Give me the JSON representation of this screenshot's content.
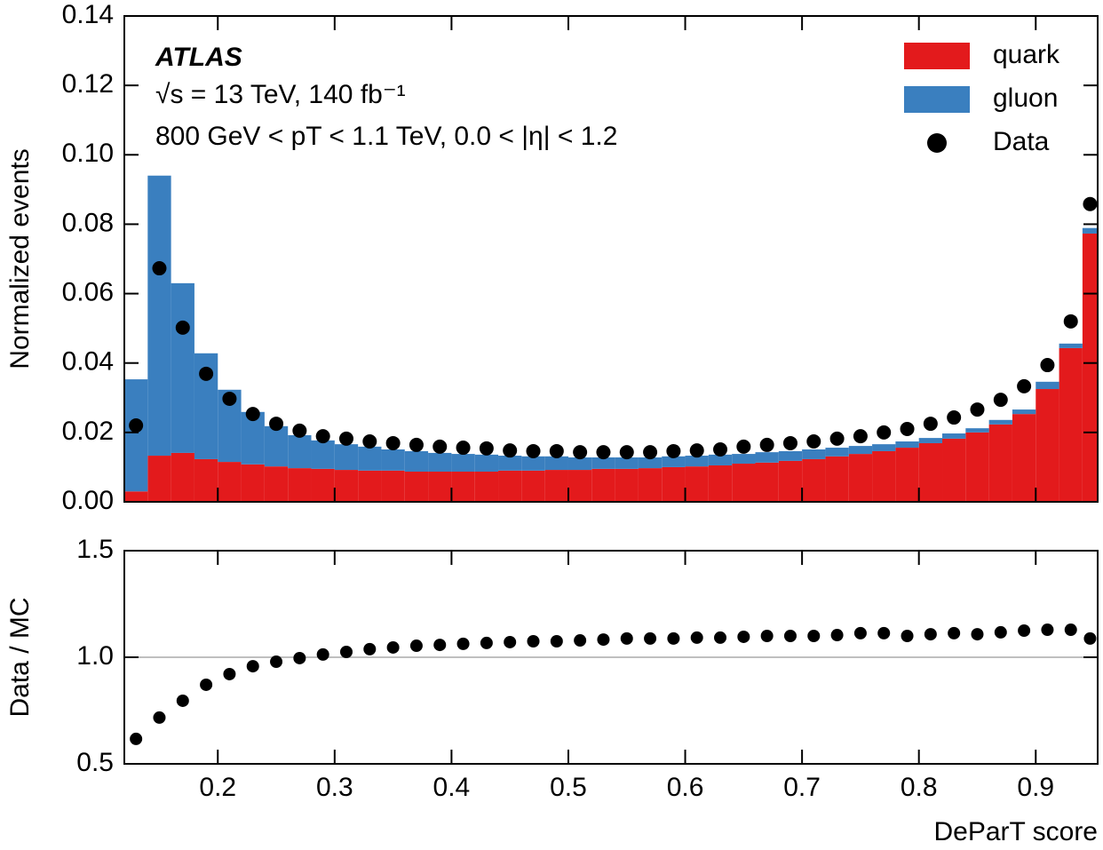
{
  "chart_data": [
    {
      "type": "histogram",
      "annotations": [
        "ATLAS",
        "√s = 13 TeV, 140 fb⁻¹",
        "800 GeV < pT < 1.1 TeV, 0.0 < |η| < 1.2"
      ],
      "ylabel": "Normalized events",
      "bins": [
        0.12,
        0.14,
        0.16,
        0.18,
        0.2,
        0.22,
        0.24,
        0.26,
        0.28,
        0.3,
        0.32,
        0.34,
        0.36,
        0.38,
        0.4,
        0.42,
        0.44,
        0.46,
        0.48,
        0.5,
        0.52,
        0.54,
        0.56,
        0.58,
        0.6,
        0.62,
        0.64,
        0.66,
        0.68,
        0.7,
        0.72,
        0.74,
        0.76,
        0.78,
        0.8,
        0.82,
        0.84,
        0.86,
        0.88,
        0.9,
        0.92,
        0.94,
        0.953
      ],
      "series": [
        {
          "name": "quark",
          "color": "#e31a1c",
          "stacked": true,
          "values": [
            0.003,
            0.0133,
            0.0141,
            0.0123,
            0.0115,
            0.0108,
            0.0102,
            0.0097,
            0.0095,
            0.0092,
            0.009,
            0.009,
            0.0087,
            0.0087,
            0.0087,
            0.0087,
            0.009,
            0.009,
            0.0092,
            0.0092,
            0.0095,
            0.0095,
            0.0097,
            0.01,
            0.0102,
            0.0105,
            0.011,
            0.0113,
            0.0118,
            0.0123,
            0.0131,
            0.0138,
            0.0146,
            0.0156,
            0.0169,
            0.0182,
            0.02,
            0.0223,
            0.0253,
            0.0325,
            0.0443,
            0.0773
          ]
        },
        {
          "name": "gluon",
          "color": "#3a7fbf",
          "stacked": true,
          "values": [
            0.0323,
            0.0807,
            0.0489,
            0.0305,
            0.0208,
            0.0151,
            0.0116,
            0.0095,
            0.0082,
            0.0074,
            0.0069,
            0.0061,
            0.0059,
            0.0054,
            0.0051,
            0.0049,
            0.0043,
            0.0041,
            0.0039,
            0.0036,
            0.0033,
            0.0033,
            0.0031,
            0.0031,
            0.0031,
            0.0031,
            0.0028,
            0.003,
            0.0028,
            0.0028,
            0.0025,
            0.0023,
            0.002,
            0.0018,
            0.0015,
            0.0015,
            0.0012,
            0.0013,
            0.0013,
            0.0021,
            0.0013,
            0.0016
          ]
        },
        {
          "name": "Data",
          "color": "#000000",
          "marker": "circle",
          "values": [
            0.022,
            0.0673,
            0.0502,
            0.0369,
            0.0297,
            0.0253,
            0.0225,
            0.0205,
            0.0189,
            0.0182,
            0.0174,
            0.0169,
            0.0164,
            0.0159,
            0.0156,
            0.0154,
            0.0148,
            0.0146,
            0.0146,
            0.0143,
            0.0143,
            0.0143,
            0.0143,
            0.0146,
            0.0148,
            0.0151,
            0.0159,
            0.0164,
            0.0169,
            0.0174,
            0.0182,
            0.0189,
            0.02,
            0.021,
            0.0225,
            0.0243,
            0.0266,
            0.0294,
            0.0333,
            0.0394,
            0.052,
            0.0858
          ]
        }
      ],
      "xlim": [
        0.12,
        0.953
      ],
      "xticks": [
        0.2,
        0.3,
        0.4,
        0.5,
        0.6,
        0.7,
        0.8,
        0.9
      ],
      "ylim": [
        0,
        0.14
      ],
      "yticks": [
        {
          "value": 0,
          "label": "0.00"
        },
        0.02,
        0.04,
        0.06,
        0.08,
        {
          "value": 0.1,
          "label": "0.10"
        },
        0.12,
        0.14
      ],
      "legend": "upper right"
    },
    {
      "type": "scatter",
      "xlabel": "DeParT score",
      "ylabel": "Data / MC",
      "x": [
        0.13,
        0.15,
        0.17,
        0.19,
        0.21,
        0.23,
        0.25,
        0.27,
        0.29,
        0.31,
        0.33,
        0.35,
        0.37,
        0.39,
        0.41,
        0.43,
        0.45,
        0.47,
        0.49,
        0.51,
        0.53,
        0.55,
        0.57,
        0.59,
        0.61,
        0.63,
        0.65,
        0.67,
        0.69,
        0.71,
        0.73,
        0.75,
        0.77,
        0.79,
        0.81,
        0.83,
        0.85,
        0.87,
        0.89,
        0.91,
        0.93,
        0.9465
      ],
      "values": [
        0.617,
        0.717,
        0.796,
        0.871,
        0.921,
        0.958,
        0.979,
        0.996,
        1.013,
        1.025,
        1.038,
        1.046,
        1.054,
        1.058,
        1.063,
        1.067,
        1.071,
        1.075,
        1.075,
        1.079,
        1.083,
        1.088,
        1.088,
        1.088,
        1.092,
        1.092,
        1.096,
        1.1,
        1.1,
        1.1,
        1.104,
        1.113,
        1.113,
        1.1,
        1.108,
        1.113,
        1.108,
        1.117,
        1.125,
        1.129,
        1.129,
        1.088
      ],
      "color": "#000000",
      "xlim": [
        0.12,
        0.953
      ],
      "xticks": [
        0.2,
        0.3,
        0.4,
        0.5,
        0.6,
        0.7,
        0.8,
        0.9
      ],
      "ylim": [
        0.5,
        1.5
      ],
      "yticks": [
        0.5,
        {
          "value": 1,
          "label": "1.0"
        },
        1.5
      ]
    }
  ]
}
